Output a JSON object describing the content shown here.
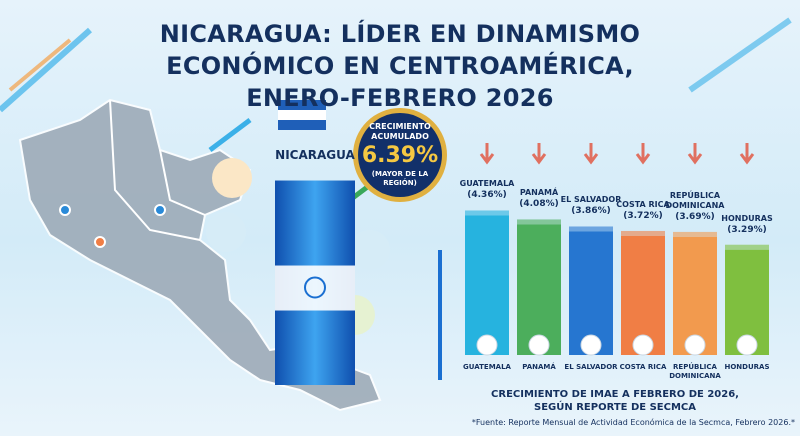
{
  "chart_data": {
    "type": "bar",
    "title": "NICARAGUA: LÍDER EN DINAMISMO ECONÓMICO EN CENTROAMÉRICA, ENERO-FEBRERO 2026",
    "categories": [
      "GUATEMALA",
      "PANAMÁ",
      "EL SALVADOR",
      "COSTA RICA",
      "REPÚBLICA DOMINICANA",
      "HONDURAS"
    ],
    "values": [
      4.36,
      4.08,
      3.86,
      3.72,
      3.69,
      3.29
    ],
    "value_labels": [
      "(4.36%)",
      "(4.08%)",
      "(3.86%)",
      "(3.72%)",
      "(3.69%)",
      "(3.29%)"
    ],
    "colors": [
      "#26b3df",
      "#4cae5c",
      "#2676d0",
      "#f07e45",
      "#f29a4e",
      "#7fbf3f"
    ],
    "highlight": {
      "name": "NICARAGUA",
      "label": "CRECIMIENTO ACUMULADO",
      "value": 6.39,
      "value_label": "6.39%",
      "note": "(MAYOR DE LA REGIÓN)",
      "color": "#1a6fd1"
    },
    "caption": "CRECIMIENTO DE IMAE A FEBRERO DE 2026, SEGÚN REPORTE DE SECMCA",
    "source": "*Fuente: Reporte Mensual de Actividad Económica de la Secmca, Febrero 2026.*"
  }
}
